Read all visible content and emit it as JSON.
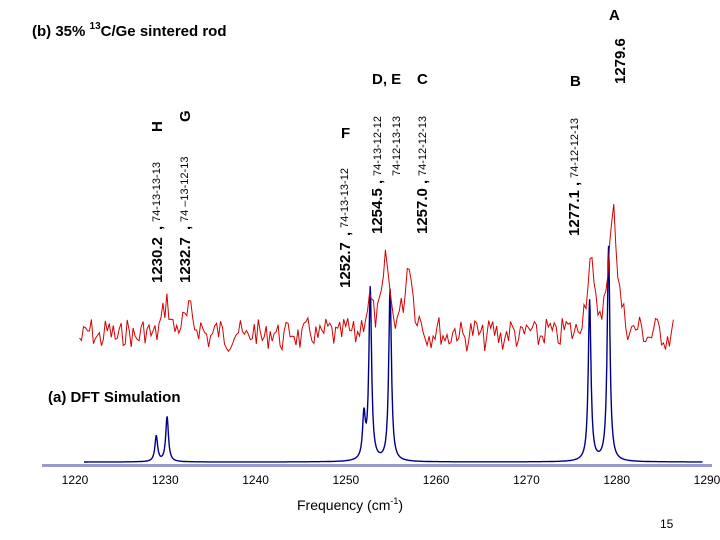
{
  "chart_data": {
    "type": "line",
    "title_b": "(b) 35% ",
    "title_b_sup": "13",
    "title_b_rest": "C/Ge sintered rod",
    "title_a": "(a) DFT Simulation",
    "xlabel": "Frequency (cm",
    "xlabel_sup": "-1",
    "xlabel_end": ")",
    "xlim": [
      1220,
      1290
    ],
    "x_ticks": [
      "1220",
      "1230",
      "1240",
      "1250",
      "1260",
      "1270",
      "1280",
      "1290"
    ],
    "page_number": "15",
    "series": [
      {
        "name": "DFT simulation",
        "color": "#00008b",
        "baseline": 0,
        "peaks": [
          {
            "x": 1229.0,
            "height": 0.12
          },
          {
            "x": 1230.2,
            "height": 0.21
          },
          {
            "x": 1252.0,
            "height": 0.2
          },
          {
            "x": 1252.7,
            "height": 0.8
          },
          {
            "x": 1254.9,
            "height": 0.8
          },
          {
            "x": 1277.0,
            "height": 0.75
          },
          {
            "x": 1279.1,
            "height": 1.0
          }
        ]
      },
      {
        "name": "35% 13C/Ge sintered rod spectrum",
        "color": "#d40000",
        "baseline": 0,
        "peaks": [
          {
            "x": 1230.2,
            "height": 0.55
          },
          {
            "x": 1232.7,
            "height": 0.45
          },
          {
            "x": 1252.7,
            "height": 0.55
          },
          {
            "x": 1254.5,
            "height": 1.2
          },
          {
            "x": 1257.0,
            "height": 1.35
          },
          {
            "x": 1277.1,
            "height": 1.25
          },
          {
            "x": 1279.6,
            "height": 2.4
          }
        ]
      }
    ],
    "annotations": [
      {
        "id": "H",
        "letter": "H",
        "freq": "1230.2",
        "iso": "74-13-13-13",
        "x": 1230.2
      },
      {
        "id": "G",
        "letter": "G",
        "freq": "1232.7",
        "iso": "74 –13-12-13",
        "x": 1232.7
      },
      {
        "id": "F",
        "letter": "F",
        "freq": "1252.7",
        "iso": "74-13-13-12",
        "x": 1252.7
      },
      {
        "id": "DE",
        "letter": "D, E",
        "freq": "1254.5",
        "iso": "74-13-12-12",
        "x": 1254.5
      },
      {
        "id": "DE2",
        "letter": "",
        "freq": "",
        "iso": "74-12-13-13",
        "x": 1255.8
      },
      {
        "id": "C",
        "letter": "C",
        "freq": "1257.0",
        "iso": "74-12-12-13",
        "x": 1257.0
      },
      {
        "id": "B",
        "letter": "B",
        "freq": "1277.1",
        "iso": "74-12-12-13",
        "x": 1277.1
      },
      {
        "id": "A",
        "letter": "A",
        "freq": "1279.6",
        "iso": "",
        "x": 1279.6
      }
    ]
  }
}
